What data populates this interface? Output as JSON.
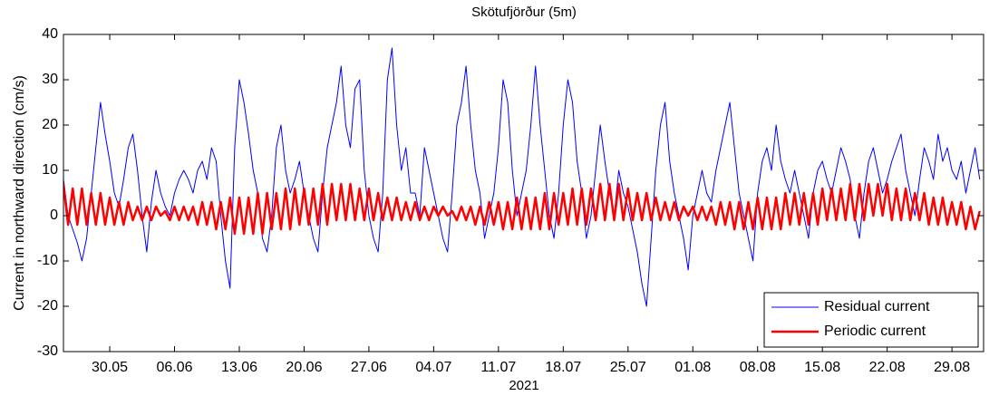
{
  "chart_data": {
    "type": "line",
    "title": "Skötufjörður (5m)",
    "xlabel": "2021",
    "ylabel": "Current in northward direction (cm/s)",
    "xlim": [
      "2021-05-25 00:00",
      "2021-09-01 10:00"
    ],
    "ylim": [
      -30,
      40
    ],
    "yticks": [
      -30,
      -20,
      -10,
      0,
      10,
      20,
      30,
      40
    ],
    "xticks": [
      {
        "value": "2021-05-30 00:00",
        "label": "30.05"
      },
      {
        "value": "2021-06-06 00:00",
        "label": "06.06"
      },
      {
        "value": "2021-06-13 00:00",
        "label": "13.06"
      },
      {
        "value": "2021-06-20 00:00",
        "label": "20.06"
      },
      {
        "value": "2021-06-27 00:00",
        "label": "27.06"
      },
      {
        "value": "2021-07-04 00:00",
        "label": "04.07"
      },
      {
        "value": "2021-07-11 00:00",
        "label": "11.07"
      },
      {
        "value": "2021-07-18 00:00",
        "label": "18.07"
      },
      {
        "value": "2021-07-25 00:00",
        "label": "25.07"
      },
      {
        "value": "2021-08-01 00:00",
        "label": "01.08"
      },
      {
        "value": "2021-08-08 00:00",
        "label": "08.08"
      },
      {
        "value": "2021-08-15 00:00",
        "label": "15.08"
      },
      {
        "value": "2021-08-22 00:00",
        "label": "22.08"
      },
      {
        "value": "2021-08-29 00:00",
        "label": "29.08"
      }
    ],
    "legend": "lower right",
    "x": [
      "2021-05-25 00:00",
      "2021-05-25 12:00",
      "2021-05-26 00:00",
      "2021-05-26 12:00",
      "2021-05-27 00:00",
      "2021-05-27 12:00",
      "2021-05-28 00:00",
      "2021-05-28 12:00",
      "2021-05-29 00:00",
      "2021-05-29 12:00",
      "2021-05-30 00:00",
      "2021-05-30 12:00",
      "2021-05-31 00:00",
      "2021-05-31 12:00",
      "2021-06-01 00:00",
      "2021-06-01 12:00",
      "2021-06-02 00:00",
      "2021-06-02 12:00",
      "2021-06-03 00:00",
      "2021-06-03 12:00",
      "2021-06-04 00:00",
      "2021-06-04 12:00",
      "2021-06-05 00:00",
      "2021-06-05 12:00",
      "2021-06-06 00:00",
      "2021-06-06 12:00",
      "2021-06-07 00:00",
      "2021-06-07 12:00",
      "2021-06-08 00:00",
      "2021-06-08 12:00",
      "2021-06-09 00:00",
      "2021-06-09 12:00",
      "2021-06-10 00:00",
      "2021-06-10 12:00",
      "2021-06-11 00:00",
      "2021-06-11 12:00",
      "2021-06-12 00:00",
      "2021-06-12 12:00",
      "2021-06-13 00:00",
      "2021-06-13 12:00",
      "2021-06-14 00:00",
      "2021-06-14 12:00",
      "2021-06-15 00:00",
      "2021-06-15 12:00",
      "2021-06-16 00:00",
      "2021-06-16 12:00",
      "2021-06-17 00:00",
      "2021-06-17 12:00",
      "2021-06-18 00:00",
      "2021-06-18 12:00",
      "2021-06-19 00:00",
      "2021-06-19 12:00",
      "2021-06-20 00:00",
      "2021-06-20 12:00",
      "2021-06-21 00:00",
      "2021-06-21 12:00",
      "2021-06-22 00:00",
      "2021-06-22 12:00",
      "2021-06-23 00:00",
      "2021-06-23 12:00",
      "2021-06-24 00:00",
      "2021-06-24 12:00",
      "2021-06-25 00:00",
      "2021-06-25 12:00",
      "2021-06-26 00:00",
      "2021-06-26 12:00",
      "2021-06-27 00:00",
      "2021-06-27 12:00",
      "2021-06-28 00:00",
      "2021-06-28 12:00",
      "2021-06-29 00:00",
      "2021-06-29 12:00",
      "2021-06-30 00:00",
      "2021-06-30 12:00",
      "2021-07-01 00:00",
      "2021-07-01 12:00",
      "2021-07-02 00:00",
      "2021-07-02 12:00",
      "2021-07-03 00:00",
      "2021-07-03 12:00",
      "2021-07-04 00:00",
      "2021-07-04 12:00",
      "2021-07-05 00:00",
      "2021-07-05 12:00",
      "2021-07-06 00:00",
      "2021-07-06 12:00",
      "2021-07-07 00:00",
      "2021-07-07 12:00",
      "2021-07-08 00:00",
      "2021-07-08 12:00",
      "2021-07-09 00:00",
      "2021-07-09 12:00",
      "2021-07-10 00:00",
      "2021-07-10 12:00",
      "2021-07-11 00:00",
      "2021-07-11 12:00",
      "2021-07-12 00:00",
      "2021-07-12 12:00",
      "2021-07-13 00:00",
      "2021-07-13 12:00",
      "2021-07-14 00:00",
      "2021-07-14 12:00",
      "2021-07-15 00:00",
      "2021-07-15 12:00",
      "2021-07-16 00:00",
      "2021-07-16 12:00",
      "2021-07-17 00:00",
      "2021-07-17 12:00",
      "2021-07-18 00:00",
      "2021-07-18 12:00",
      "2021-07-19 00:00",
      "2021-07-19 12:00",
      "2021-07-20 00:00",
      "2021-07-20 12:00",
      "2021-07-21 00:00",
      "2021-07-21 12:00",
      "2021-07-22 00:00",
      "2021-07-22 12:00",
      "2021-07-23 00:00",
      "2021-07-23 12:00",
      "2021-07-24 00:00",
      "2021-07-24 12:00",
      "2021-07-25 00:00",
      "2021-07-25 12:00",
      "2021-07-26 00:00",
      "2021-07-26 12:00",
      "2021-07-27 00:00",
      "2021-07-27 12:00",
      "2021-07-28 00:00",
      "2021-07-28 12:00",
      "2021-07-29 00:00",
      "2021-07-29 12:00",
      "2021-07-30 00:00",
      "2021-07-30 12:00",
      "2021-07-31 00:00",
      "2021-07-31 12:00",
      "2021-08-01 00:00",
      "2021-08-01 12:00",
      "2021-08-02 00:00",
      "2021-08-02 12:00",
      "2021-08-03 00:00",
      "2021-08-03 12:00",
      "2021-08-04 00:00",
      "2021-08-04 12:00",
      "2021-08-05 00:00",
      "2021-08-05 12:00",
      "2021-08-06 00:00",
      "2021-08-06 12:00",
      "2021-08-07 00:00",
      "2021-08-07 12:00",
      "2021-08-08 00:00",
      "2021-08-08 12:00",
      "2021-08-09 00:00",
      "2021-08-09 12:00",
      "2021-08-10 00:00",
      "2021-08-10 12:00",
      "2021-08-11 00:00",
      "2021-08-11 12:00",
      "2021-08-12 00:00",
      "2021-08-12 12:00",
      "2021-08-13 00:00",
      "2021-08-13 12:00",
      "2021-08-14 00:00",
      "2021-08-14 12:00",
      "2021-08-15 00:00",
      "2021-08-15 12:00",
      "2021-08-16 00:00",
      "2021-08-16 12:00",
      "2021-08-17 00:00",
      "2021-08-17 12:00",
      "2021-08-18 00:00",
      "2021-08-18 12:00",
      "2021-08-19 00:00",
      "2021-08-19 12:00",
      "2021-08-20 00:00",
      "2021-08-20 12:00",
      "2021-08-21 00:00",
      "2021-08-21 12:00",
      "2021-08-22 00:00",
      "2021-08-22 12:00",
      "2021-08-23 00:00",
      "2021-08-23 12:00",
      "2021-08-24 00:00",
      "2021-08-24 12:00",
      "2021-08-25 00:00",
      "2021-08-25 12:00",
      "2021-08-26 00:00",
      "2021-08-26 12:00",
      "2021-08-27 00:00",
      "2021-08-27 12:00",
      "2021-08-28 00:00",
      "2021-08-28 12:00",
      "2021-08-29 00:00",
      "2021-08-29 12:00",
      "2021-08-30 00:00",
      "2021-08-30 12:00",
      "2021-08-31 00:00",
      "2021-08-31 12:00",
      "2021-09-01 00:00"
    ],
    "series": [
      {
        "name": "Residual current",
        "color": "#0000ff",
        "line_width": 1,
        "values": [
          8,
          0,
          -3,
          -6,
          -10,
          -5,
          5,
          15,
          25,
          18,
          12,
          5,
          2,
          8,
          15,
          18,
          10,
          0,
          -8,
          3,
          10,
          5,
          2,
          0,
          5,
          8,
          10,
          8,
          5,
          10,
          12,
          8,
          15,
          12,
          0,
          -10,
          -16,
          15,
          30,
          25,
          18,
          10,
          5,
          -5,
          -8,
          0,
          15,
          20,
          10,
          5,
          8,
          12,
          5,
          0,
          -5,
          -8,
          5,
          15,
          20,
          25,
          33,
          20,
          15,
          28,
          30,
          10,
          0,
          -5,
          -8,
          5,
          30,
          37,
          20,
          10,
          15,
          5,
          5,
          0,
          15,
          10,
          5,
          0,
          -5,
          -8,
          5,
          20,
          25,
          33,
          20,
          10,
          5,
          -5,
          0,
          5,
          15,
          30,
          25,
          10,
          0,
          5,
          10,
          20,
          33,
          20,
          10,
          0,
          -5,
          5,
          20,
          30,
          25,
          12,
          5,
          -5,
          0,
          10,
          20,
          12,
          5,
          0,
          10,
          5,
          2,
          -3,
          -8,
          -15,
          -20,
          -5,
          10,
          20,
          25,
          12,
          5,
          0,
          -5,
          -12,
          0,
          5,
          10,
          5,
          3,
          10,
          15,
          20,
          25,
          15,
          5,
          0,
          -5,
          -10,
          5,
          12,
          15,
          10,
          20,
          12,
          8,
          5,
          10,
          5,
          0,
          -5,
          5,
          10,
          12,
          8,
          5,
          10,
          15,
          12,
          8,
          0,
          -5,
          5,
          12,
          15,
          10,
          5,
          8,
          12,
          15,
          18,
          10,
          5,
          0,
          8,
          15,
          12,
          8,
          18,
          12,
          15,
          10,
          8,
          12,
          5,
          10,
          15,
          8
        ]
      },
      {
        "name": "Periodic current",
        "color": "#ff0000",
        "line_width": 2.5,
        "values": [
          7,
          -2,
          6,
          -2,
          6,
          -2,
          5,
          -2,
          5,
          -2,
          4,
          -2,
          3,
          -2,
          3,
          -1,
          2,
          -1,
          2,
          -1,
          2,
          0,
          1,
          -1,
          2,
          -1,
          2,
          -1,
          2,
          -2,
          3,
          -2,
          3,
          -3,
          3,
          -3,
          4,
          -4,
          4,
          -4,
          4,
          -4,
          5,
          -4,
          5,
          -3,
          5,
          -3,
          6,
          -3,
          6,
          -2,
          6,
          -2,
          6,
          -2,
          7,
          -2,
          7,
          -1,
          7,
          -1,
          7,
          -1,
          6,
          -1,
          6,
          -1,
          5,
          -1,
          4,
          -1,
          4,
          -1,
          3,
          -1,
          3,
          -1,
          2,
          -1,
          2,
          0,
          2,
          0,
          1,
          -1,
          2,
          -1,
          2,
          -2,
          2,
          -2,
          3,
          -2,
          3,
          -3,
          3,
          -3,
          4,
          -3,
          4,
          -3,
          4,
          -3,
          5,
          -3,
          5,
          -2,
          5,
          -2,
          6,
          -2,
          6,
          -2,
          6,
          -1,
          7,
          -1,
          7,
          -1,
          7,
          -1,
          6,
          -1,
          5,
          -1,
          5,
          -1,
          4,
          -1,
          3,
          -1,
          3,
          -1,
          2,
          0,
          2,
          -1,
          2,
          -1,
          2,
          -2,
          3,
          -2,
          3,
          -3,
          3,
          -3,
          3,
          -3,
          4,
          -3,
          4,
          -3,
          4,
          -3,
          5,
          -2,
          5,
          -2,
          5,
          -2,
          5,
          -2,
          6,
          -1,
          6,
          -1,
          6,
          -1,
          7,
          -1,
          7,
          -1,
          7,
          0,
          7,
          0,
          7,
          -1,
          6,
          -1,
          6,
          -1,
          5,
          -1,
          5,
          -2,
          4,
          -2,
          4,
          -2,
          3,
          -2,
          3,
          -3,
          2,
          -3,
          1
        ]
      }
    ]
  }
}
